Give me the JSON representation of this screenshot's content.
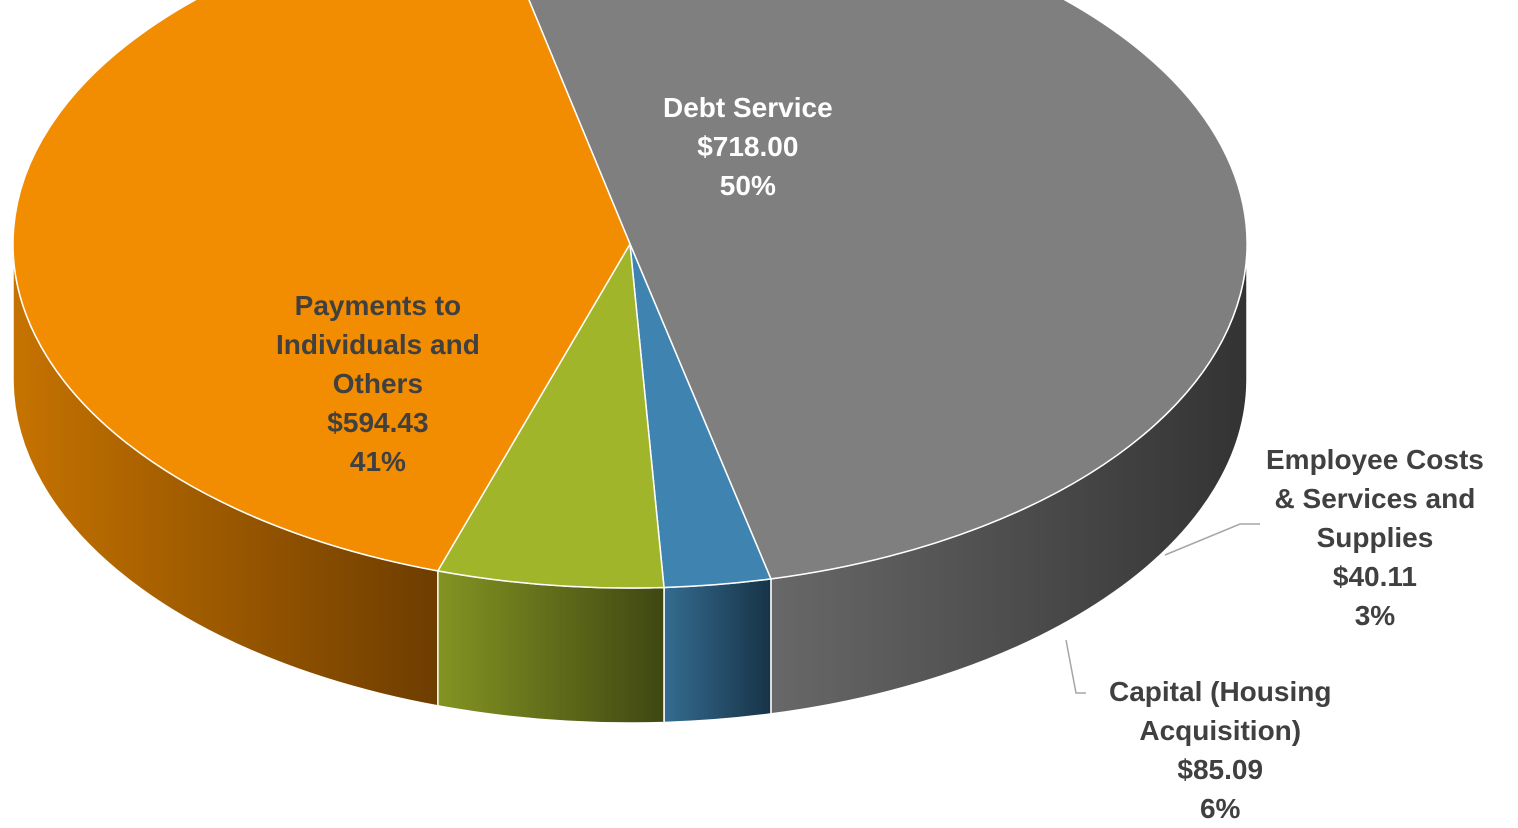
{
  "chart_data": {
    "type": "pie",
    "title": "",
    "currency_unit": "$",
    "slices": [
      {
        "name": "Debt Service",
        "name_lines": [
          "Debt Service"
        ],
        "value": 718.0,
        "value_label": "$718.00",
        "percent": 50,
        "percent_label": "50%",
        "color": "#7f7f7f",
        "side_color": "#333333"
      },
      {
        "name": "Employee Costs & Services and Supplies",
        "name_lines": [
          "Employee Costs",
          "& Services and",
          "Supplies"
        ],
        "value": 40.11,
        "value_label": "$40.11",
        "percent": 3,
        "percent_label": "3%",
        "color": "#3f84b0",
        "side_color": "#173347"
      },
      {
        "name": "Capital (Housing Acquisition)",
        "name_lines": [
          "Capital (Housing",
          "Acquisition)"
        ],
        "value": 85.09,
        "value_label": "$85.09",
        "percent": 6,
        "percent_label": "6%",
        "color": "#a1b52a",
        "side_color": "#3f4712"
      },
      {
        "name": "Payments to Individuals and Others",
        "name_lines": [
          "Payments to",
          "Individuals and",
          "Others"
        ],
        "value": 594.43,
        "value_label": "$594.43",
        "percent": 41,
        "percent_label": "41%",
        "color": "#f28c00",
        "side_color": "#6e3d00"
      }
    ],
    "legend": "none",
    "data_labels": "category, value, percent",
    "style": "3d-pie"
  }
}
